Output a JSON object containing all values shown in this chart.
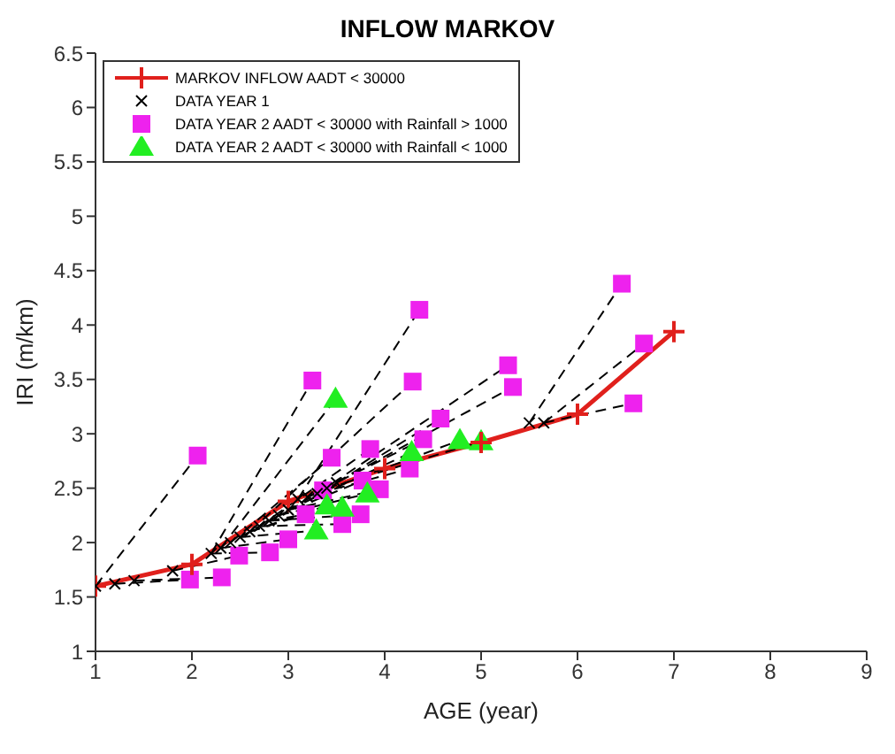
{
  "chart_data": {
    "type": "scatter",
    "title": "INFLOW MARKOV",
    "xlabel": "AGE (year)",
    "ylabel": "IRI (m/km)",
    "xlim": [
      1,
      9
    ],
    "xticks": [
      1,
      2,
      3,
      4,
      5,
      6,
      7,
      8,
      9
    ],
    "ylim": [
      1,
      6.5
    ],
    "yticks": [
      1,
      1.5,
      2,
      2.5,
      3,
      3.5,
      4,
      4.5,
      5,
      5.5,
      6,
      6.5
    ],
    "grid": false,
    "legend": "top left",
    "series": [
      {
        "type": "line",
        "color": "#000000",
        "line_style": "dashed",
        "marker": "none",
        "x": [
          1.0,
          2.06
        ],
        "values": [
          1.6,
          2.8
        ]
      },
      {
        "type": "line",
        "color": "#000000",
        "line_style": "dashed",
        "marker": "none",
        "x": [
          1.2,
          1.98
        ],
        "values": [
          1.62,
          1.66
        ]
      },
      {
        "type": "line",
        "color": "#000000",
        "line_style": "dashed",
        "marker": "none",
        "x": [
          1.4,
          2.31
        ],
        "values": [
          1.65,
          1.68
        ]
      },
      {
        "type": "line",
        "color": "#000000",
        "line_style": "dashed",
        "marker": "none",
        "x": [
          1.8,
          2.49
        ],
        "values": [
          1.74,
          1.88
        ]
      },
      {
        "type": "line",
        "color": "#000000",
        "line_style": "dashed",
        "marker": "none",
        "x": [
          2.2,
          2.81
        ],
        "values": [
          1.9,
          1.91
        ]
      },
      {
        "type": "line",
        "color": "#000000",
        "line_style": "dashed",
        "marker": "none",
        "x": [
          2.3,
          3.0
        ],
        "values": [
          1.95,
          2.03
        ]
      },
      {
        "type": "line",
        "color": "#000000",
        "line_style": "dashed",
        "marker": "none",
        "x": [
          2.2,
          3.25
        ],
        "values": [
          1.9,
          3.49
        ]
      },
      {
        "type": "line",
        "color": "#000000",
        "line_style": "dashed",
        "marker": "none",
        "x": [
          2.4,
          3.45
        ],
        "values": [
          2.0,
          2.78
        ]
      },
      {
        "type": "line",
        "color": "#000000",
        "line_style": "dashed",
        "marker": "none",
        "x": [
          2.5,
          3.36
        ],
        "values": [
          2.05,
          2.48
        ]
      },
      {
        "type": "line",
        "color": "#000000",
        "line_style": "dashed",
        "marker": "none",
        "x": [
          2.6,
          3.18
        ],
        "values": [
          2.1,
          2.26
        ]
      },
      {
        "type": "line",
        "color": "#000000",
        "line_style": "dashed",
        "marker": "none",
        "x": [
          2.7,
          3.56
        ],
        "values": [
          2.15,
          2.17
        ]
      },
      {
        "type": "line",
        "color": "#000000",
        "line_style": "dashed",
        "marker": "none",
        "x": [
          2.8,
          3.75
        ],
        "values": [
          2.2,
          2.26
        ]
      },
      {
        "type": "line",
        "color": "#000000",
        "line_style": "dashed",
        "marker": "none",
        "x": [
          2.9,
          3.77
        ],
        "values": [
          2.25,
          2.57
        ]
      },
      {
        "type": "line",
        "color": "#000000",
        "line_style": "dashed",
        "marker": "none",
        "x": [
          2.7,
          3.85
        ],
        "values": [
          2.15,
          2.86
        ]
      },
      {
        "type": "line",
        "color": "#000000",
        "line_style": "dashed",
        "marker": "none",
        "x": [
          3.0,
          3.95
        ],
        "values": [
          2.3,
          2.49
        ]
      },
      {
        "type": "line",
        "color": "#000000",
        "line_style": "dashed",
        "marker": "none",
        "x": [
          2.6,
          4.29
        ],
        "values": [
          2.1,
          3.48
        ]
      },
      {
        "type": "line",
        "color": "#000000",
        "line_style": "dashed",
        "marker": "none",
        "x": [
          3.1,
          4.36
        ],
        "values": [
          2.4,
          4.14
        ]
      },
      {
        "type": "line",
        "color": "#000000",
        "line_style": "dashed",
        "marker": "none",
        "x": [
          3.3,
          4.26
        ],
        "values": [
          2.45,
          2.68
        ]
      },
      {
        "type": "line",
        "color": "#000000",
        "line_style": "dashed",
        "marker": "none",
        "x": [
          3.2,
          4.4
        ],
        "values": [
          2.42,
          2.95
        ]
      },
      {
        "type": "line",
        "color": "#000000",
        "line_style": "dashed",
        "marker": "none",
        "x": [
          3.5,
          4.58
        ],
        "values": [
          2.55,
          3.14
        ]
      },
      {
        "type": "line",
        "color": "#000000",
        "line_style": "dashed",
        "marker": "none",
        "x": [
          3.3,
          5.28
        ],
        "values": [
          2.45,
          3.63
        ]
      },
      {
        "type": "line",
        "color": "#000000",
        "line_style": "dashed",
        "marker": "none",
        "x": [
          3.5,
          5.33
        ],
        "values": [
          2.55,
          3.43
        ]
      },
      {
        "type": "line",
        "color": "#000000",
        "line_style": "dashed",
        "marker": "none",
        "x": [
          5.5,
          6.46
        ],
        "values": [
          3.1,
          4.38
        ]
      },
      {
        "type": "line",
        "color": "#000000",
        "line_style": "dashed",
        "marker": "none",
        "x": [
          5.65,
          6.69
        ],
        "values": [
          3.1,
          3.83
        ]
      },
      {
        "type": "line",
        "color": "#000000",
        "line_style": "dashed",
        "marker": "none",
        "x": [
          5.65,
          6.58
        ],
        "values": [
          3.1,
          3.28
        ]
      },
      {
        "type": "line",
        "color": "#000000",
        "line_style": "dashed",
        "marker": "none",
        "x": [
          2.3,
          3.49
        ],
        "values": [
          1.95,
          3.32
        ]
      },
      {
        "type": "line",
        "color": "#000000",
        "line_style": "dashed",
        "marker": "none",
        "x": [
          3.0,
          4.28
        ],
        "values": [
          2.3,
          2.83
        ]
      },
      {
        "type": "line",
        "color": "#000000",
        "line_style": "dashed",
        "marker": "none",
        "x": [
          3.2,
          4.78
        ],
        "values": [
          2.42,
          2.94
        ]
      },
      {
        "type": "line",
        "color": "#000000",
        "line_style": "dashed",
        "marker": "none",
        "x": [
          2.5,
          3.29
        ],
        "values": [
          2.05,
          2.11
        ]
      },
      {
        "type": "line",
        "color": "#000000",
        "line_style": "dashed",
        "marker": "none",
        "x": [
          2.6,
          3.4
        ],
        "values": [
          2.1,
          2.34
        ]
      },
      {
        "type": "line",
        "color": "#000000",
        "line_style": "dashed",
        "marker": "none",
        "x": [
          2.8,
          3.56
        ],
        "values": [
          2.2,
          2.32
        ]
      },
      {
        "type": "line",
        "color": "#000000",
        "line_style": "dashed",
        "marker": "none",
        "x": [
          2.9,
          3.82
        ],
        "values": [
          2.25,
          2.45
        ]
      },
      {
        "type": "line",
        "color": "#000000",
        "line_style": "dashed",
        "marker": "none",
        "x": [
          3.4,
          5.0
        ],
        "values": [
          2.5,
          2.93
        ]
      },
      {
        "name": "MARKOV INFLOW AADT < 30000",
        "type": "line",
        "color": "#e0201c",
        "line_style": "solid",
        "marker": "cross",
        "x": [
          1,
          2,
          3,
          4,
          5,
          6,
          7
        ],
        "values": [
          1.6,
          1.8,
          2.38,
          2.68,
          2.92,
          3.18,
          3.94
        ]
      },
      {
        "name": "DATA YEAR 1",
        "color": "#000000",
        "marker": "cross",
        "x": [
          1.0,
          1.2,
          1.4,
          1.8,
          2.2,
          2.3,
          2.4,
          2.5,
          2.6,
          2.7,
          2.8,
          2.9,
          3.0,
          3.1,
          3.2,
          3.3,
          3.4,
          3.5,
          5.5,
          5.65
        ],
        "values": [
          1.6,
          1.62,
          1.65,
          1.74,
          1.9,
          1.95,
          2.0,
          2.05,
          2.1,
          2.15,
          2.2,
          2.25,
          2.3,
          2.4,
          2.42,
          2.45,
          2.5,
          2.55,
          3.1,
          3.1
        ]
      },
      {
        "name": "DATA YEAR 2 AADT < 30000 with Rainfall > 1000",
        "color": "#ee22ee",
        "marker": "square",
        "x": [
          2.06,
          1.98,
          2.31,
          2.49,
          2.81,
          3.0,
          3.25,
          3.45,
          3.36,
          3.18,
          3.56,
          3.75,
          3.77,
          3.85,
          3.95,
          4.29,
          4.36,
          4.26,
          4.4,
          4.58,
          5.28,
          5.33,
          6.46,
          6.69,
          6.58
        ],
        "values": [
          2.8,
          1.66,
          1.68,
          1.88,
          1.91,
          2.03,
          3.49,
          2.78,
          2.48,
          2.26,
          2.17,
          2.26,
          2.57,
          2.86,
          2.49,
          3.48,
          4.14,
          2.68,
          2.95,
          3.14,
          3.63,
          3.43,
          4.38,
          3.83,
          3.28
        ]
      },
      {
        "name": "DATA YEAR 2 AADT < 30000 with Rainfall < 1000",
        "color": "#22ee22",
        "marker": "triangle",
        "x": [
          3.49,
          4.28,
          4.78,
          3.29,
          3.4,
          3.56,
          3.82,
          5.0
        ],
        "values": [
          3.32,
          2.83,
          2.94,
          2.11,
          2.34,
          2.32,
          2.45,
          2.93
        ]
      }
    ]
  }
}
